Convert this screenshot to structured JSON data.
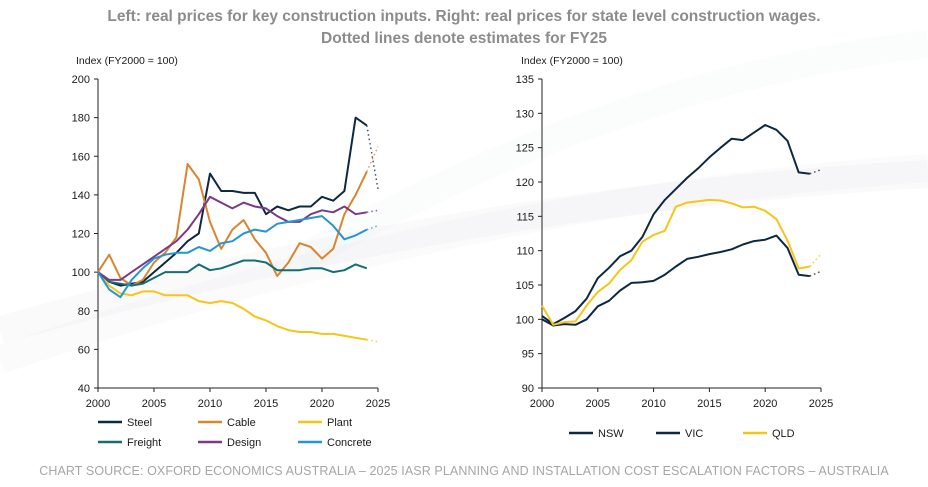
{
  "title_line1": "Left: real prices for key construction inputs. Right: real prices for state level construction wages.",
  "title_line2": "Dotted lines denote estimates for FY25",
  "source": "CHART SOURCE: OXFORD ECONOMICS AUSTRALIA – 2025 IASR PLANNING AND INSTALLATION COST ESCALATION FACTORS – AUSTRALIA",
  "colors": {
    "steel": "#0e2841",
    "cable": "#d9852e",
    "plant": "#f5c518",
    "freight": "#146e73",
    "design": "#7a3a8a",
    "concrete": "#2596d1",
    "nsw": "#0e2841",
    "vic": "#0e2841",
    "qld": "#f5c518"
  },
  "chart_data": [
    {
      "type": "line",
      "ylabel": "Index (FY2000 = 100)",
      "ylim": [
        40,
        200
      ],
      "yticks": [
        "40",
        "60",
        "80",
        "100",
        "120",
        "140",
        "160",
        "180",
        "200"
      ],
      "xlim": [
        2000,
        2025
      ],
      "xticks": [
        "2000",
        "2005",
        "2010",
        "2015",
        "2020",
        "2025"
      ],
      "x": [
        2000,
        2001,
        2002,
        2003,
        2004,
        2005,
        2006,
        2007,
        2008,
        2009,
        2010,
        2011,
        2012,
        2013,
        2014,
        2015,
        2016,
        2017,
        2018,
        2019,
        2020,
        2021,
        2022,
        2023,
        2024
      ],
      "series": [
        {
          "key": "steel",
          "name": "Steel",
          "values": [
            100,
            95,
            93,
            94,
            95,
            100,
            105,
            110,
            116,
            120,
            151,
            142,
            142,
            141,
            141,
            130,
            134,
            132,
            134,
            134,
            139,
            137,
            142,
            180,
            176
          ],
          "estimate": 143
        },
        {
          "key": "cable",
          "name": "Cable",
          "values": [
            100,
            109,
            97,
            93,
            96,
            105,
            110,
            118,
            156,
            148,
            126,
            112,
            122,
            127,
            117,
            110,
            98,
            105,
            115,
            113,
            107,
            112,
            130,
            140,
            152
          ],
          "estimate": 165
        },
        {
          "key": "plant",
          "name": "Plant",
          "values": [
            100,
            93,
            89,
            88,
            90,
            90,
            88,
            88,
            88,
            85,
            84,
            85,
            84,
            81,
            77,
            75,
            72,
            70,
            69,
            69,
            68,
            68,
            67,
            66,
            65
          ],
          "estimate": 64
        },
        {
          "key": "freight",
          "name": "Freight",
          "values": [
            100,
            95,
            94,
            93,
            94,
            97,
            100,
            100,
            100,
            104,
            101,
            102,
            104,
            106,
            106,
            105,
            101,
            101,
            101,
            102,
            102,
            100,
            101,
            104,
            102
          ],
          "estimate": null
        },
        {
          "key": "design",
          "name": "Design",
          "values": [
            100,
            96,
            96,
            100,
            104,
            108,
            112,
            116,
            122,
            130,
            139,
            136,
            133,
            136,
            134,
            133,
            129,
            126,
            126,
            130,
            132,
            131,
            134,
            130,
            131
          ],
          "estimate": 132
        },
        {
          "key": "concrete",
          "name": "Concrete",
          "values": [
            100,
            91,
            87,
            96,
            102,
            107,
            109,
            110,
            110,
            113,
            111,
            115,
            116,
            120,
            122,
            121,
            125,
            126,
            127,
            128,
            129,
            124,
            117,
            119,
            122
          ],
          "estimate": 124
        }
      ]
    },
    {
      "type": "line",
      "ylabel": "Index (FY2000 = 100)",
      "ylim": [
        90,
        135
      ],
      "yticks": [
        "90",
        "95",
        "100",
        "105",
        "110",
        "115",
        "120",
        "125",
        "130",
        "135"
      ],
      "xlim": [
        2000,
        2025
      ],
      "xticks": [
        "2000",
        "2005",
        "2010",
        "2015",
        "2020",
        "2025"
      ],
      "x": [
        2000,
        2001,
        2002,
        2003,
        2004,
        2005,
        2006,
        2007,
        2008,
        2009,
        2010,
        2011,
        2012,
        2013,
        2014,
        2015,
        2016,
        2017,
        2018,
        2019,
        2020,
        2021,
        2022,
        2023,
        2024
      ],
      "series": [
        {
          "key": "nsw",
          "name": "NSW",
          "values": [
            100.5,
            99.3,
            100.2,
            101.2,
            103.0,
            106.0,
            107.5,
            109.2,
            110.0,
            112.0,
            115.3,
            117.4,
            119.0,
            120.6,
            122.0,
            123.6,
            125.0,
            126.3,
            126.1,
            127.2,
            128.3,
            127.6,
            126.0,
            121.4,
            121.2
          ],
          "estimate": 121.8
        },
        {
          "key": "vic",
          "name": "VIC",
          "values": [
            100.0,
            99.1,
            99.3,
            99.2,
            100.0,
            101.9,
            102.7,
            104.2,
            105.3,
            105.4,
            105.6,
            106.5,
            107.7,
            108.8,
            109.1,
            109.5,
            109.8,
            110.2,
            110.9,
            111.4,
            111.6,
            112.2,
            110.4,
            106.5,
            106.3
          ],
          "estimate": 107.0
        },
        {
          "key": "qld",
          "name": "QLD",
          "values": [
            102.0,
            99.2,
            99.6,
            99.7,
            102.0,
            104.0,
            105.2,
            107.2,
            108.6,
            111.3,
            112.3,
            112.9,
            116.4,
            117.0,
            117.2,
            117.4,
            117.3,
            116.9,
            116.3,
            116.4,
            115.8,
            114.6,
            111.5,
            107.4,
            107.7
          ],
          "estimate": 109.5
        }
      ]
    }
  ]
}
